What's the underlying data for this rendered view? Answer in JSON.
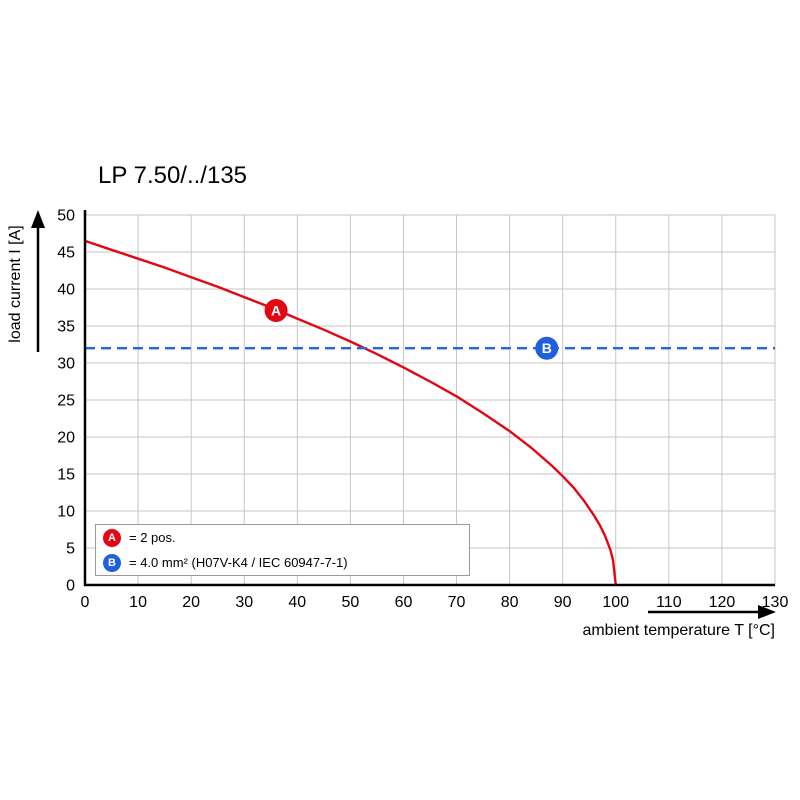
{
  "title": "LP 7.50/../135",
  "axes": {
    "x_label": "ambient temperature T [°C]",
    "y_label": "load current I [A]",
    "x_ticks": [
      0,
      10,
      20,
      30,
      40,
      50,
      60,
      70,
      80,
      90,
      100,
      110,
      120,
      130
    ],
    "y_ticks": [
      0,
      5,
      10,
      15,
      20,
      25,
      30,
      35,
      40,
      45,
      50
    ]
  },
  "legend": {
    "items": [
      {
        "badge": "A",
        "color": "#e30613",
        "text": "= 2 pos."
      },
      {
        "badge": "B",
        "color": "#1f5fe0",
        "text": "= 4.0 mm² (H07V-K4 / IEC 60947-7-1)"
      }
    ]
  },
  "chart_data": {
    "type": "line",
    "title": "LP 7.50/../135",
    "xlabel": "ambient temperature T [°C]",
    "ylabel": "load current I [A]",
    "xlim": [
      0,
      130
    ],
    "ylim": [
      0,
      50
    ],
    "grid": true,
    "series": [
      {
        "name": "derating-curve-2pos",
        "color": "#e30613",
        "style": "solid",
        "points": [
          [
            0,
            46.5
          ],
          [
            5,
            45.3
          ],
          [
            10,
            44.1
          ],
          [
            15,
            42.9
          ],
          [
            20,
            41.6
          ],
          [
            25,
            40.3
          ],
          [
            30,
            38.9
          ],
          [
            35,
            37.5
          ],
          [
            40,
            36.0
          ],
          [
            45,
            34.5
          ],
          [
            50,
            32.9
          ],
          [
            55,
            31.2
          ],
          [
            60,
            29.4
          ],
          [
            65,
            27.5
          ],
          [
            70,
            25.5
          ],
          [
            75,
            23.2
          ],
          [
            80,
            20.8
          ],
          [
            84,
            18.6
          ],
          [
            88,
            16.1
          ],
          [
            90,
            14.7
          ],
          [
            92,
            13.2
          ],
          [
            94,
            11.4
          ],
          [
            96,
            9.3
          ],
          [
            97,
            8.1
          ],
          [
            98,
            6.6
          ],
          [
            99,
            4.7
          ],
          [
            99.5,
            3.3
          ],
          [
            100,
            0
          ]
        ]
      },
      {
        "name": "rated-current-32A-line",
        "color": "#2563e0",
        "style": "dashed",
        "points": [
          [
            0,
            32
          ],
          [
            130,
            32
          ]
        ]
      }
    ],
    "markers": [
      {
        "label": "A",
        "x": 36,
        "y": 37.1,
        "color": "#e30613"
      },
      {
        "label": "B",
        "x": 87,
        "y": 32,
        "color": "#1f5fe0"
      }
    ]
  }
}
